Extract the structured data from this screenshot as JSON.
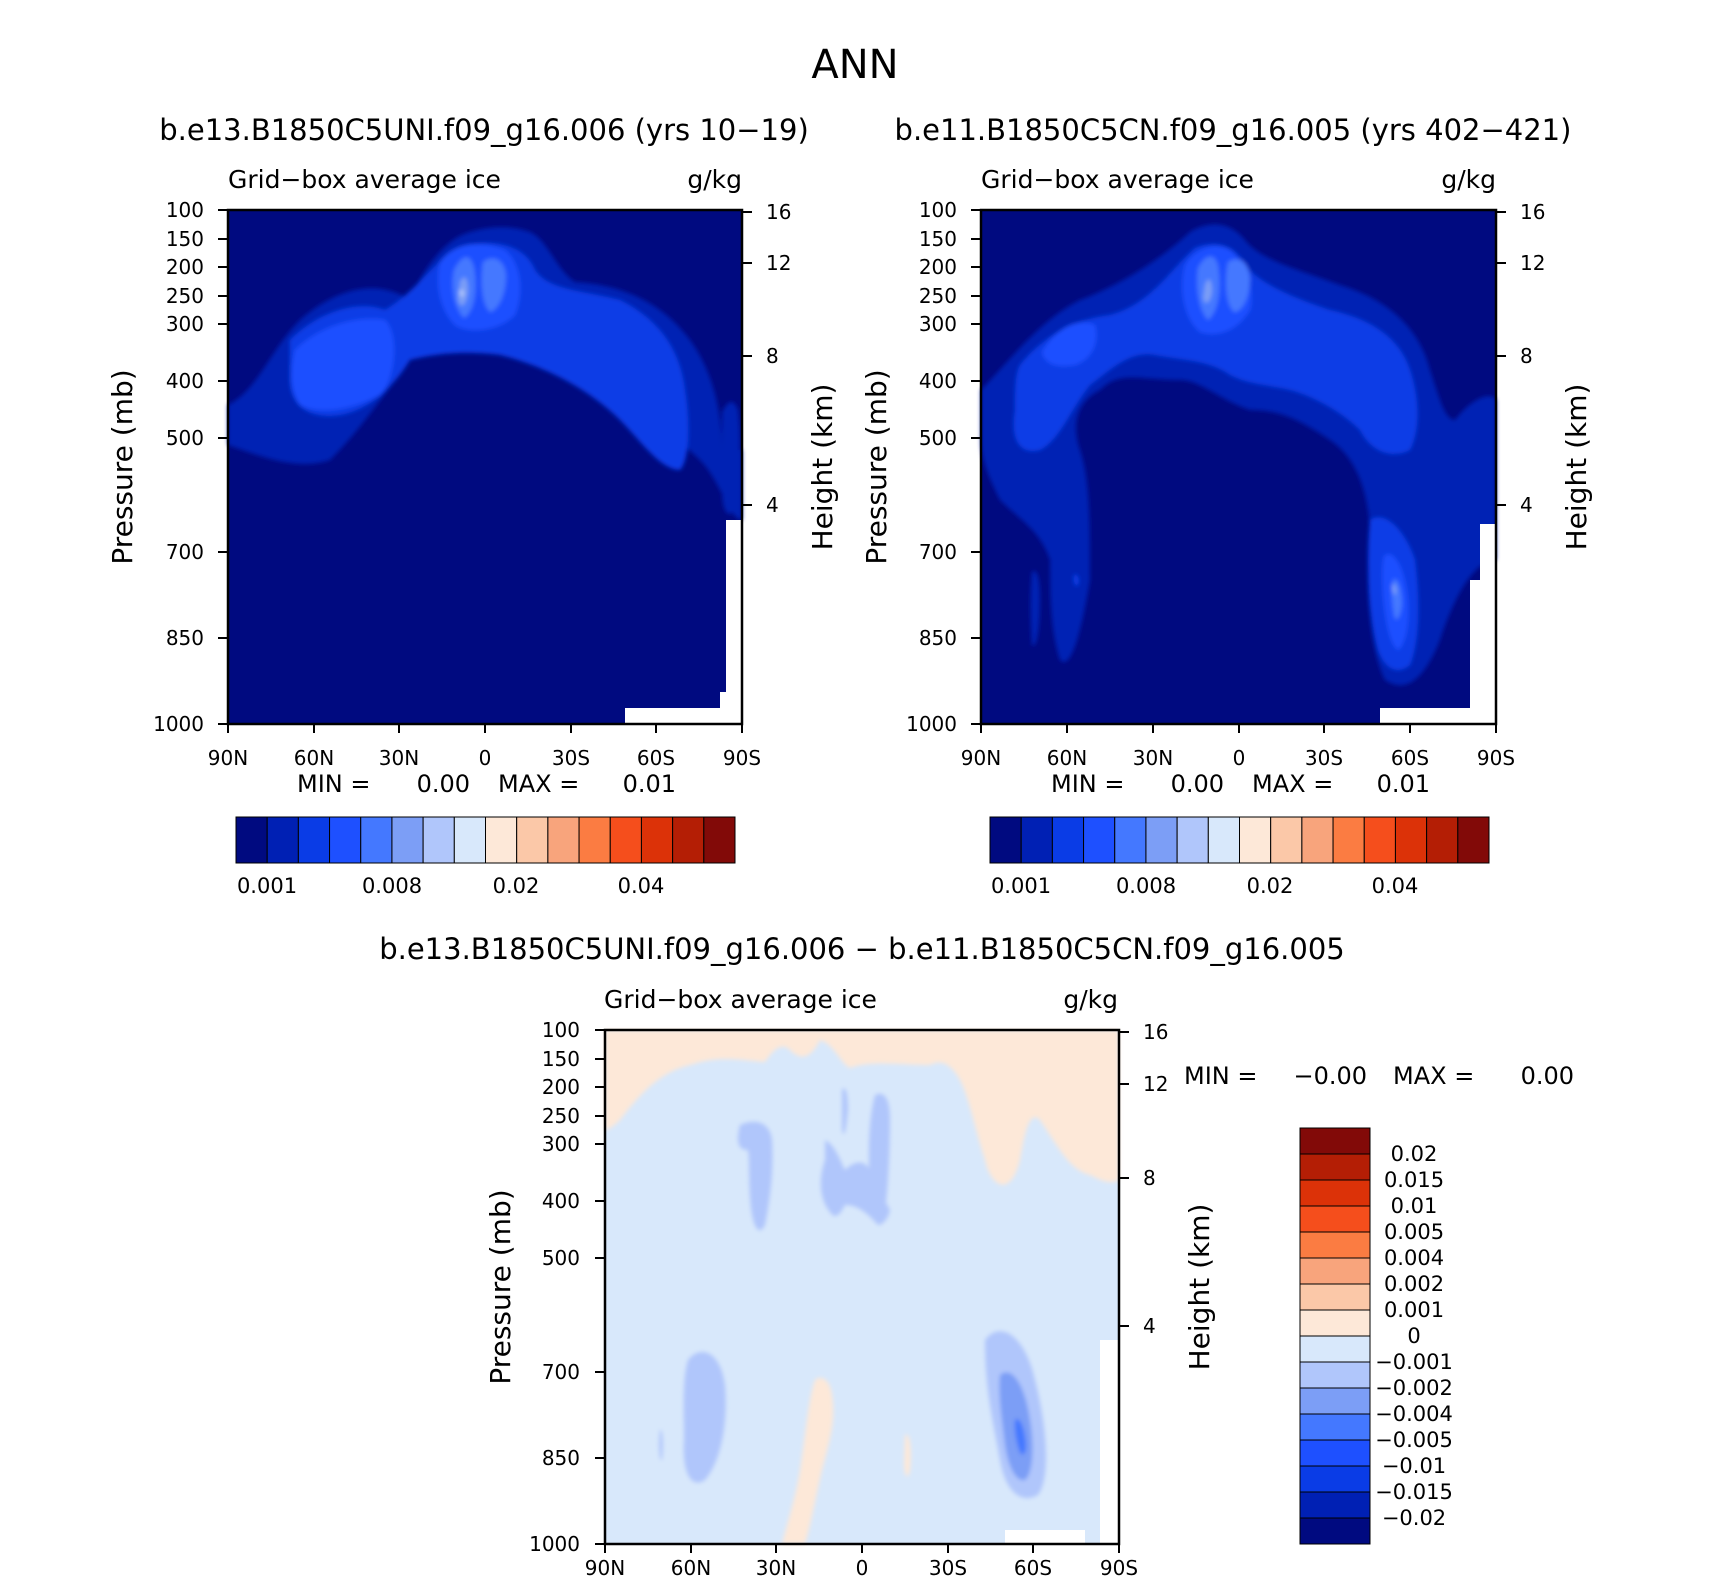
{
  "title": "ANN",
  "chart_data": [
    {
      "type": "heatmap",
      "id": "panel1",
      "title": "b.e13.B1850C5UNI.f09_g16.006 (yrs 10−19)",
      "subtitle_left": "Grid−box average ice",
      "subtitle_right": "g/kg",
      "ylabel": "Pressure (mb)",
      "ylabel_right": "Height (km)",
      "x_ticks": [
        "90N",
        "60N",
        "30N",
        "0",
        "30S",
        "60S",
        "90S"
      ],
      "y_ticks": [
        "100",
        "150",
        "200",
        "250",
        "300",
        "400",
        "500",
        "700",
        "850",
        "1000"
      ],
      "y_ticks_right": [
        "16",
        "12",
        "8",
        "4"
      ],
      "stats": {
        "min_label": "MIN =",
        "min": "0.00",
        "max_label": "MAX =",
        "max": "0.01"
      },
      "colorbar_labels": [
        "0.001",
        "0.008",
        "0.02",
        "0.04"
      ]
    },
    {
      "type": "heatmap",
      "id": "panel2",
      "title": "b.e11.B1850C5CN.f09_g16.005 (yrs 402−421)",
      "subtitle_left": "Grid−box average ice",
      "subtitle_right": "g/kg",
      "ylabel": "Pressure (mb)",
      "ylabel_right": "Height (km)",
      "x_ticks": [
        "90N",
        "60N",
        "30N",
        "0",
        "30S",
        "60S",
        "90S"
      ],
      "y_ticks": [
        "100",
        "150",
        "200",
        "250",
        "300",
        "400",
        "500",
        "700",
        "850",
        "1000"
      ],
      "y_ticks_right": [
        "16",
        "12",
        "8",
        "4"
      ],
      "stats": {
        "min_label": "MIN =",
        "min": "0.00",
        "max_label": "MAX =",
        "max": "0.01"
      },
      "colorbar_labels": [
        "0.001",
        "0.008",
        "0.02",
        "0.04"
      ]
    },
    {
      "type": "heatmap",
      "id": "panel3",
      "title": "b.e13.B1850C5UNI.f09_g16.006 − b.e11.B1850C5CN.f09_g16.005",
      "subtitle_left": "Grid−box average ice",
      "subtitle_right": "g/kg",
      "ylabel": "Pressure (mb)",
      "ylabel_right": "Height (km)",
      "x_ticks": [
        "90N",
        "60N",
        "30N",
        "0",
        "30S",
        "60S",
        "90S"
      ],
      "y_ticks": [
        "100",
        "150",
        "200",
        "250",
        "300",
        "400",
        "500",
        "700",
        "850",
        "1000"
      ],
      "y_ticks_right": [
        "16",
        "12",
        "8",
        "4"
      ],
      "stats": {
        "min_label": "MIN =",
        "min": "−0.00",
        "max_label": "MAX =",
        "max": "0.00"
      },
      "colorbar_labels": [
        "0.02",
        "0.015",
        "0.01",
        "0.005",
        "0.004",
        "0.002",
        "0.001",
        "0",
        "−0.001",
        "−0.002",
        "−0.004",
        "−0.005",
        "−0.01",
        "−0.015",
        "−0.02"
      ]
    }
  ],
  "colors": {
    "seq_colorbar": [
      "#000a80",
      "#0020b4",
      "#0a3ce6",
      "#1e50ff",
      "#4478ff",
      "#7c9ef6",
      "#b0c6fb",
      "#d8e8fb",
      "#fde8d8",
      "#fbc8a8",
      "#f8a47c",
      "#fb7c42",
      "#f54e1c",
      "#dc3208",
      "#b41e05",
      "#820a08"
    ],
    "div_colorbar": [
      "#820a08",
      "#b41e05",
      "#dc3208",
      "#f54e1c",
      "#fb7c42",
      "#f8a47c",
      "#fbc8a8",
      "#fde8d8",
      "#d8e8fb",
      "#b0c6fb",
      "#7c9ef6",
      "#4478ff",
      "#1e50ff",
      "#0a3ce6",
      "#0020b4",
      "#000a80"
    ]
  }
}
